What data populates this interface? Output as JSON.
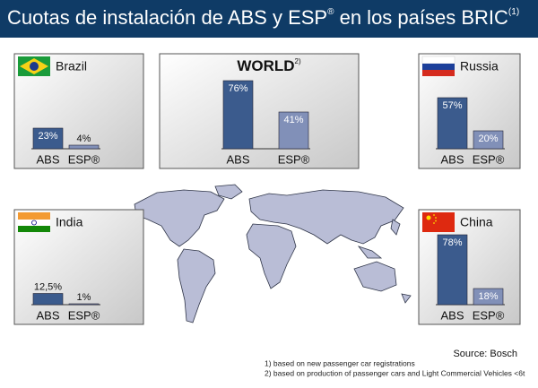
{
  "header": {
    "title": "Cuotas de instalación de ABS y ESP",
    "title_mark": "®",
    "title_rest": " en los países BRIC",
    "title_note": "(1)"
  },
  "chart_data": [
    {
      "type": "bar",
      "title": "Brazil",
      "categories": [
        "ABS",
        "ESP®"
      ],
      "values": [
        23,
        4
      ],
      "value_labels": [
        "23%",
        "4%"
      ],
      "colors": [
        "#3b5b8d",
        "#8190b8"
      ],
      "ylim": [
        0,
        100
      ]
    },
    {
      "type": "bar",
      "title": "WORLD",
      "title_note": "2)",
      "categories": [
        "ABS",
        "ESP®"
      ],
      "values": [
        76,
        41
      ],
      "value_labels": [
        "76%",
        "41%"
      ],
      "colors": [
        "#3b5b8d",
        "#8190b8"
      ],
      "ylim": [
        0,
        100
      ]
    },
    {
      "type": "bar",
      "title": "Russia",
      "categories": [
        "ABS",
        "ESP®"
      ],
      "values": [
        57,
        20
      ],
      "value_labels": [
        "57%",
        "20%"
      ],
      "colors": [
        "#3b5b8d",
        "#8190b8"
      ],
      "ylim": [
        0,
        100
      ]
    },
    {
      "type": "bar",
      "title": "India",
      "categories": [
        "ABS",
        "ESP®"
      ],
      "values": [
        12.5,
        1
      ],
      "value_labels": [
        "12,5%",
        "1%"
      ],
      "colors": [
        "#3b5b8d",
        "#8190b8"
      ],
      "ylim": [
        0,
        100
      ]
    },
    {
      "type": "bar",
      "title": "China",
      "categories": [
        "ABS",
        "ESP®"
      ],
      "values": [
        78,
        18
      ],
      "value_labels": [
        "78%",
        "18%"
      ],
      "colors": [
        "#3b5b8d",
        "#8190b8"
      ],
      "ylim": [
        0,
        100
      ]
    }
  ],
  "footer": {
    "source": "Source: Bosch",
    "notes": [
      "1) based on new passenger car registrations",
      "2) based on production of passenger cars and Light Commercial Vehicles <6t"
    ]
  }
}
